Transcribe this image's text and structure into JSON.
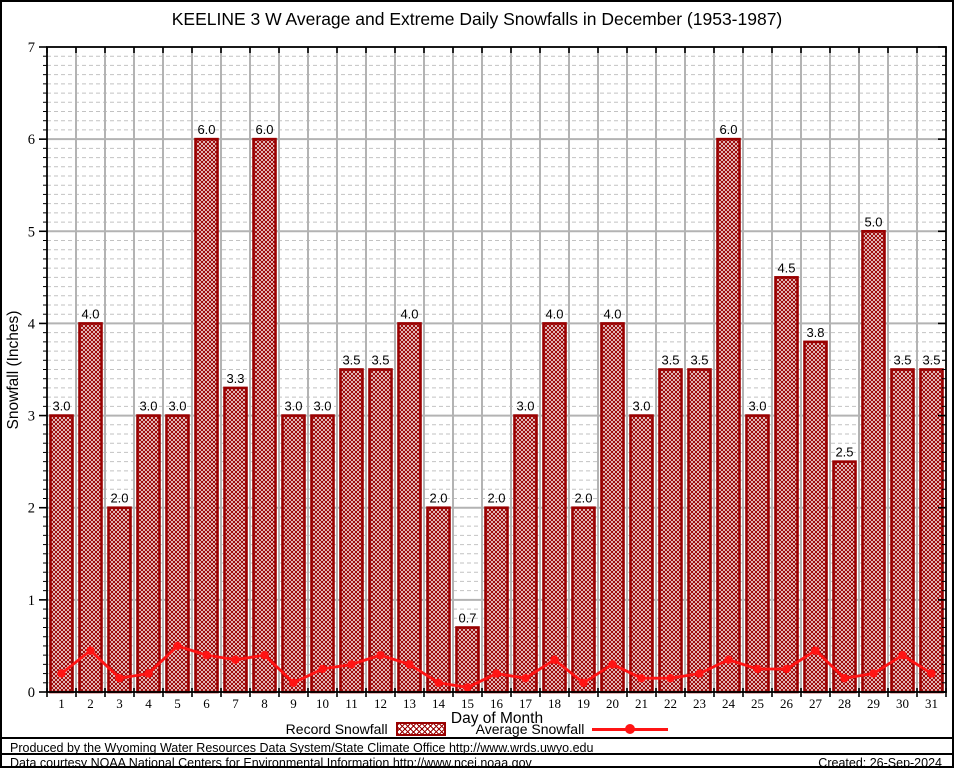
{
  "chart_data": {
    "type": "bar",
    "title": "KEELINE 3 W Average and Extreme Daily Snowfalls in December (1953-1987)",
    "xlabel": "Day of Month",
    "ylabel": "Snowfall (Inches)",
    "ylim": [
      0,
      7
    ],
    "y_major_step": 1,
    "y_minor_step": 0.1,
    "grid": true,
    "legend_position": "bottom",
    "categories": [
      1,
      2,
      3,
      4,
      5,
      6,
      7,
      8,
      9,
      10,
      11,
      12,
      13,
      14,
      15,
      16,
      17,
      18,
      19,
      20,
      21,
      22,
      23,
      24,
      25,
      26,
      27,
      28,
      29,
      30,
      31
    ],
    "series": [
      {
        "name": "Record Snowfall",
        "type": "bar",
        "values": [
          3.0,
          4.0,
          2.0,
          3.0,
          3.0,
          6.0,
          3.3,
          6.0,
          3.0,
          3.0,
          3.5,
          3.5,
          4.0,
          2.0,
          0.7,
          2.0,
          3.0,
          4.0,
          2.0,
          4.0,
          3.0,
          3.5,
          3.5,
          6.0,
          3.0,
          4.5,
          3.8,
          2.5,
          5.0,
          3.5,
          3.5
        ],
        "labels": [
          "3.0",
          "4.0",
          "2.0",
          "3.0",
          "3.0",
          "6.0",
          "3.3",
          "6.0",
          "3.0",
          "3.0",
          "3.5",
          "3.5",
          "4.0",
          "2.0",
          "0.7",
          "2.0",
          "3.0",
          "4.0",
          "2.0",
          "4.0",
          "3.0",
          "3.5",
          "3.5",
          "6.0",
          "3.0",
          "4.5",
          "3.8",
          "2.5",
          "5.0",
          "3.5",
          "3.5"
        ]
      },
      {
        "name": "Average Snowfall",
        "type": "line",
        "values": [
          0.2,
          0.45,
          0.15,
          0.2,
          0.5,
          0.4,
          0.35,
          0.4,
          0.1,
          0.25,
          0.3,
          0.4,
          0.3,
          0.1,
          0.05,
          0.2,
          0.15,
          0.35,
          0.1,
          0.3,
          0.15,
          0.15,
          0.2,
          0.35,
          0.25,
          0.25,
          0.45,
          0.15,
          0.2,
          0.4,
          0.2
        ]
      }
    ],
    "colors": {
      "bar": "#990000",
      "bar_fill_bg": "#ffffff",
      "line": "#ff1414",
      "grid_major": "#b3b3b3",
      "grid_minor": "#c2c2c2",
      "frame": "#000000",
      "text": "#000000"
    }
  },
  "footer": {
    "line1": "Produced by the Wyoming Water Resources Data System/State Climate Office http://www.wrds.uwyo.edu",
    "line2": "Data courtesy NOAA National Centers for Environmental Information http://www.ncei.noaa.gov",
    "created": "Created: 26-Sep-2024"
  }
}
